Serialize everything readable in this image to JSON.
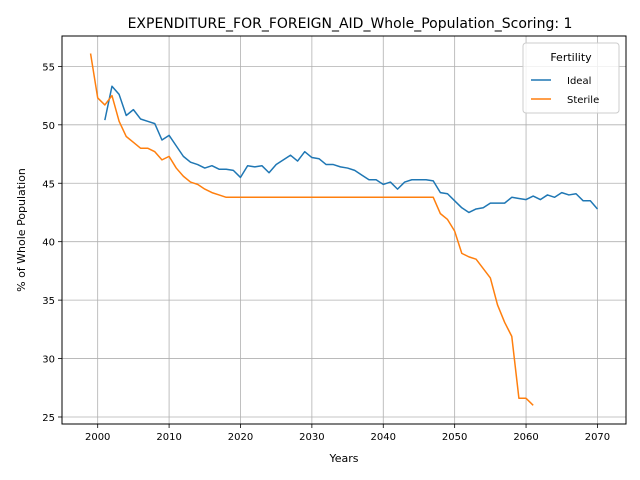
{
  "chart_data": {
    "type": "line",
    "title": "EXPENDITURE_FOR_FOREIGN_AID_Whole_Population_Scoring: 1",
    "xlabel": "Years",
    "ylabel": "% of Whole Population",
    "xlim": [
      1995,
      2074
    ],
    "ylim": [
      24.4,
      57.6
    ],
    "xticks": [
      2000,
      2010,
      2020,
      2030,
      2040,
      2050,
      2060,
      2070
    ],
    "yticks": [
      25,
      30,
      35,
      40,
      45,
      50,
      55
    ],
    "grid": true,
    "legend": {
      "title": "Fertility",
      "position": "top-right"
    },
    "series": [
      {
        "name": "Ideal",
        "color": "#1f77b4",
        "x": [
          2001,
          2002,
          2003,
          2004,
          2005,
          2006,
          2007,
          2008,
          2009,
          2010,
          2011,
          2012,
          2013,
          2014,
          2015,
          2016,
          2017,
          2018,
          2019,
          2020,
          2021,
          2022,
          2023,
          2024,
          2025,
          2026,
          2027,
          2028,
          2029,
          2030,
          2031,
          2032,
          2033,
          2034,
          2035,
          2036,
          2037,
          2038,
          2039,
          2040,
          2041,
          2042,
          2043,
          2044,
          2045,
          2046,
          2047,
          2048,
          2049,
          2050,
          2051,
          2052,
          2053,
          2054,
          2055,
          2056,
          2057,
          2058,
          2059,
          2060,
          2061,
          2062,
          2063,
          2064,
          2065,
          2066,
          2067,
          2068,
          2069,
          2070
        ],
        "values": [
          50.4,
          53.3,
          52.6,
          50.8,
          51.3,
          50.5,
          50.3,
          50.1,
          48.7,
          49.1,
          48.2,
          47.3,
          46.8,
          46.6,
          46.3,
          46.5,
          46.2,
          46.2,
          46.1,
          45.5,
          46.5,
          46.4,
          46.5,
          45.9,
          46.6,
          47.0,
          47.4,
          46.9,
          47.7,
          47.2,
          47.1,
          46.6,
          46.6,
          46.4,
          46.3,
          46.1,
          45.7,
          45.3,
          45.3,
          44.9,
          45.1,
          44.5,
          45.1,
          45.3,
          45.3,
          45.3,
          45.2,
          44.2,
          44.1,
          43.5,
          42.9,
          42.5,
          42.8,
          42.9,
          43.3,
          43.3,
          43.3,
          43.8,
          43.7,
          43.6,
          43.9,
          43.6,
          44.0,
          43.8,
          44.2,
          44.0,
          44.1,
          43.5,
          43.5,
          42.8
        ]
      },
      {
        "name": "Sterile",
        "color": "#ff7f0e",
        "x": [
          1999,
          2000,
          2001,
          2002,
          2003,
          2004,
          2005,
          2006,
          2007,
          2008,
          2009,
          2010,
          2011,
          2012,
          2013,
          2014,
          2015,
          2016,
          2017,
          2018,
          2019,
          2020,
          2021,
          2022,
          2023,
          2024,
          2025,
          2026,
          2027,
          2028,
          2029,
          2030,
          2031,
          2032,
          2033,
          2034,
          2035,
          2036,
          2037,
          2038,
          2039,
          2040,
          2041,
          2042,
          2043,
          2044,
          2045,
          2046,
          2047,
          2048,
          2049,
          2050,
          2051,
          2052,
          2053,
          2054,
          2055,
          2056,
          2057,
          2058,
          2059,
          2060,
          2061
        ],
        "values": [
          56.1,
          52.3,
          51.7,
          52.5,
          50.3,
          49.0,
          48.5,
          48.0,
          48.0,
          47.7,
          47.0,
          47.3,
          46.3,
          45.6,
          45.1,
          44.9,
          44.5,
          44.2,
          44.0,
          43.8,
          43.8,
          43.8,
          43.8,
          43.8,
          43.8,
          43.8,
          43.8,
          43.8,
          43.8,
          43.8,
          43.8,
          43.8,
          43.8,
          43.8,
          43.8,
          43.8,
          43.8,
          43.8,
          43.8,
          43.8,
          43.8,
          43.8,
          43.8,
          43.8,
          43.8,
          43.8,
          43.8,
          43.8,
          43.8,
          42.4,
          41.9,
          40.9,
          39.0,
          38.7,
          38.5,
          37.7,
          36.9,
          34.6,
          33.1,
          31.9,
          26.6,
          26.6,
          26.0
        ]
      }
    ]
  }
}
